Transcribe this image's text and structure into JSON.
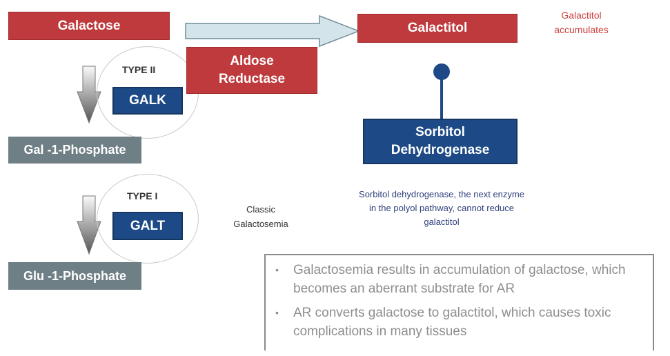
{
  "nodes": {
    "galactose": "Galactose",
    "galactitol": "Galactitol",
    "aldose_reductase": [
      "Aldose",
      "Reductase"
    ],
    "galk": "GALK",
    "galt": "GALT",
    "gal1p": "Gal -1-Phosphate",
    "glu1p": "Glu -1-Phosphate",
    "sorbitol_dh": [
      "Sorbitol",
      "Dehydrogenase"
    ]
  },
  "labels": {
    "type2": "TYPE II",
    "type1": "TYPE I",
    "galactitol_accumulates": [
      "Galactitol",
      "accumulates"
    ],
    "classic": [
      "Classic",
      "Galactosemia"
    ],
    "sdh_note": [
      "Sorbitol dehydrogenase, the next enzyme",
      "in the polyol pathway, cannot reduce",
      "galactitol"
    ]
  },
  "bullets": [
    "Galactosemia results in accumulation of galactose, which becomes an aberrant substrate for AR",
    "AR converts  galactose to galactitol, which causes toxic complications in many tissues"
  ],
  "colors": {
    "red": "#bf3a3c",
    "navy": "#1d4a86",
    "gray": "#6f7f86",
    "arrow": "#d4e4eb"
  }
}
